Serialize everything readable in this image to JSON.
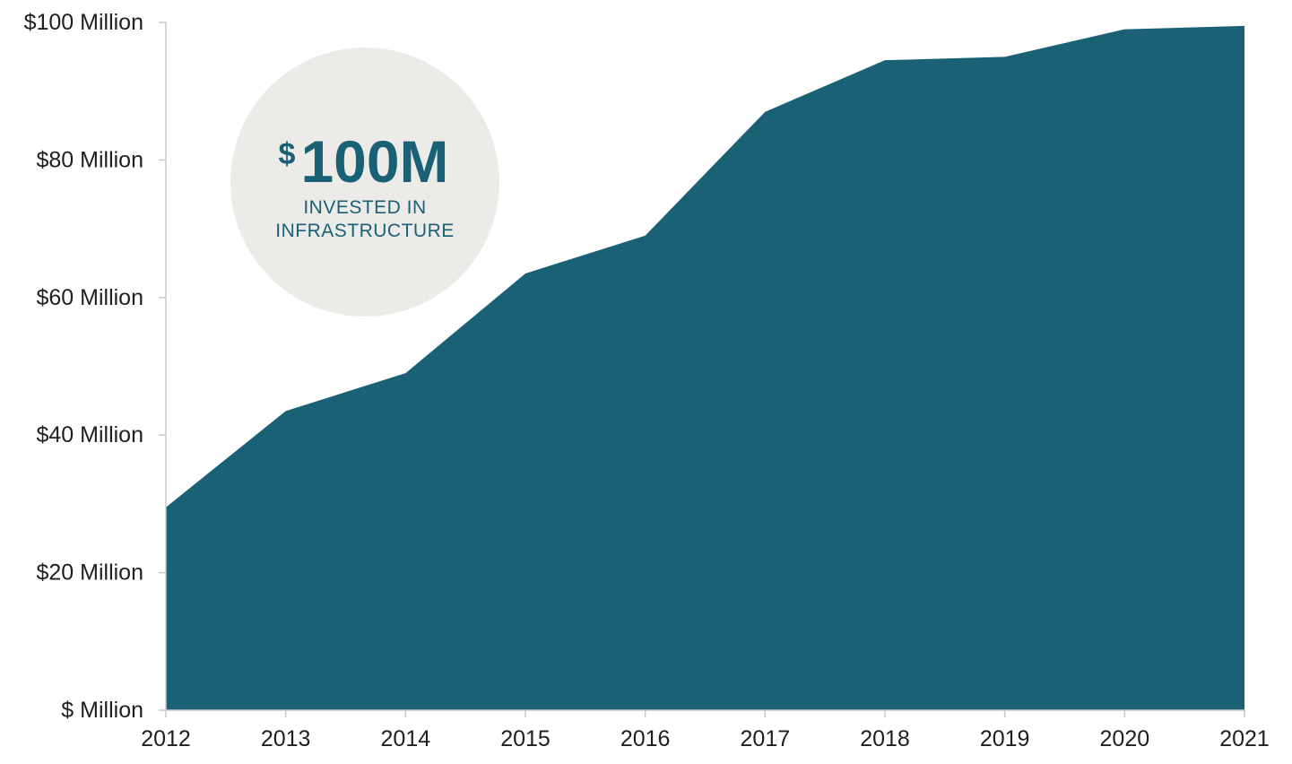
{
  "chart_data": {
    "type": "area",
    "title": "",
    "xlabel": "",
    "ylabel": "",
    "x": [
      "2012",
      "2013",
      "2014",
      "2015",
      "2016",
      "2017",
      "2018",
      "2019",
      "2020",
      "2021"
    ],
    "series": [
      {
        "values": [
          29.5,
          43.5,
          49.0,
          63.5,
          69.0,
          87.0,
          94.5,
          95.0,
          99.0,
          99.5
        ]
      }
    ],
    "ylim": [
      0,
      100
    ],
    "y_ticks": [
      0,
      20,
      40,
      60,
      80,
      100
    ],
    "y_tick_labels": [
      "$ Million",
      "$20 Million",
      "$40 Million",
      "$60 Million",
      "$80 Million",
      "$100 Million"
    ],
    "grid": false,
    "colors": {
      "area": "#1a6175",
      "badge_bg": "#ecebe8",
      "badge_text": "#1a6175",
      "axis": "#c8c8c8"
    },
    "annotation": {
      "currency": "$",
      "amount": "100M",
      "line1": "INVESTED IN",
      "line2": "INFRASTRUCTURE"
    }
  }
}
